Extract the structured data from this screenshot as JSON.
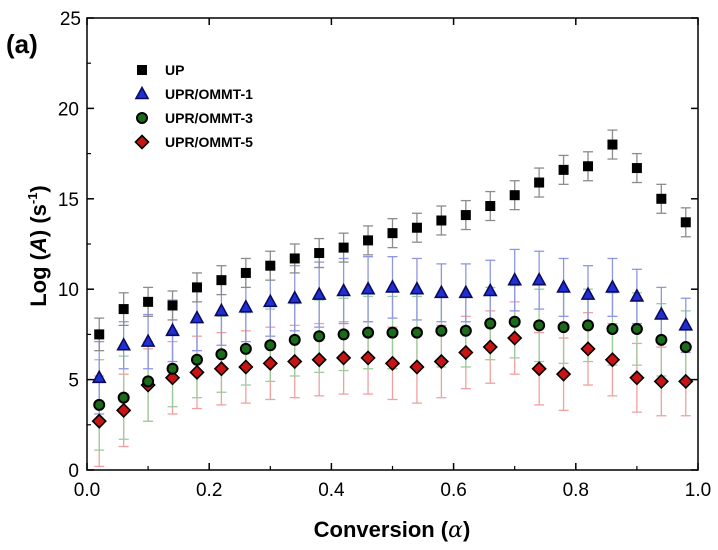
{
  "panel_label": "(a)",
  "chart_data": {
    "type": "scatter",
    "xlabel_main": "Conversion (",
    "xlabel_symbol": "α",
    "xlabel_end": ")",
    "ylabel_prefix": "Log (",
    "ylabel_var": "A",
    "ylabel_unit": ") (s",
    "ylabel_sup": "-1",
    "ylabel_end": ")",
    "xlim": [
      0.0,
      1.0
    ],
    "ylim": [
      0,
      25
    ],
    "xticks": [
      "0.0",
      "0.2",
      "0.4",
      "0.6",
      "0.8",
      "1.0"
    ],
    "yticks": [
      "0",
      "5",
      "10",
      "15",
      "20",
      "25"
    ],
    "legend_position": "top-left",
    "x": [
      0.02,
      0.06,
      0.1,
      0.14,
      0.18,
      0.22,
      0.26,
      0.3,
      0.34,
      0.38,
      0.42,
      0.46,
      0.5,
      0.54,
      0.58,
      0.62,
      0.66,
      0.7,
      0.74,
      0.78,
      0.82,
      0.86,
      0.9,
      0.94,
      0.98
    ],
    "series": [
      {
        "name": "UP",
        "marker": "square",
        "color": "#000000",
        "edge": "#000000",
        "err_color": "#8c8c8c",
        "values": [
          7.5,
          8.9,
          9.3,
          9.1,
          10.1,
          10.5,
          10.9,
          11.3,
          11.7,
          12.0,
          12.3,
          12.7,
          13.1,
          13.4,
          13.8,
          14.1,
          14.6,
          15.2,
          15.9,
          16.6,
          16.8,
          18.0,
          16.7,
          15.0,
          13.7
        ],
        "errors": [
          0.9,
          0.9,
          0.8,
          0.8,
          0.8,
          0.8,
          0.8,
          0.8,
          0.8,
          0.8,
          0.8,
          0.8,
          0.8,
          0.8,
          0.8,
          0.8,
          0.8,
          0.8,
          0.8,
          0.8,
          0.8,
          0.8,
          0.8,
          0.8,
          0.8
        ]
      },
      {
        "name": "UPR/OMMT-1",
        "marker": "triangle",
        "color": "#1f2fd1",
        "edge": "#0a0a60",
        "err_color": "#8f96e3",
        "values": [
          5.1,
          6.9,
          7.1,
          7.7,
          8.4,
          8.8,
          9.0,
          9.3,
          9.5,
          9.7,
          9.9,
          10.0,
          10.1,
          10.0,
          9.8,
          9.8,
          9.9,
          10.5,
          10.5,
          10.1,
          9.7,
          10.1,
          9.6,
          8.6,
          8.0
        ],
        "errors": [
          2.0,
          1.3,
          1.5,
          1.7,
          1.8,
          1.9,
          1.9,
          1.9,
          1.8,
          1.8,
          1.8,
          1.8,
          1.7,
          1.7,
          1.6,
          1.6,
          1.7,
          1.7,
          1.6,
          1.6,
          1.6,
          1.6,
          1.5,
          1.5,
          1.5
        ]
      },
      {
        "name": "UPR/OMMT-3",
        "marker": "circle",
        "color": "#1a6b1a",
        "edge": "#000000",
        "err_color": "#9ccc9c",
        "values": [
          3.6,
          4.0,
          4.9,
          5.6,
          6.1,
          6.4,
          6.7,
          6.9,
          7.2,
          7.4,
          7.5,
          7.6,
          7.6,
          7.6,
          7.7,
          7.7,
          8.1,
          8.2,
          8.0,
          7.9,
          8.0,
          7.8,
          7.8,
          7.2,
          6.8
        ],
        "errors": [
          2.5,
          2.3,
          2.2,
          2.1,
          2.1,
          2.1,
          2.0,
          2.0,
          2.0,
          2.0,
          2.0,
          2.0,
          2.0,
          2.0,
          2.0,
          2.0,
          2.0,
          2.0,
          2.0,
          2.0,
          2.0,
          2.0,
          2.0,
          2.0,
          2.0
        ]
      },
      {
        "name": "UPR/OMMT-5",
        "marker": "diamond",
        "color": "#c81414",
        "edge": "#000000",
        "err_color": "#f0a0a0",
        "values": [
          2.7,
          3.3,
          4.7,
          5.1,
          5.4,
          5.6,
          5.7,
          5.9,
          6.0,
          6.1,
          6.2,
          6.2,
          5.9,
          5.7,
          6.0,
          6.5,
          6.8,
          7.3,
          5.6,
          5.3,
          6.7,
          6.1,
          5.1,
          4.9,
          4.9
        ],
        "errors": [
          2.5,
          2.0,
          2.0,
          2.0,
          2.0,
          2.0,
          2.0,
          2.0,
          2.0,
          2.0,
          2.0,
          2.0,
          2.0,
          2.0,
          2.0,
          2.0,
          2.0,
          2.0,
          2.0,
          2.0,
          2.0,
          2.0,
          1.9,
          1.9,
          1.9
        ]
      }
    ]
  }
}
